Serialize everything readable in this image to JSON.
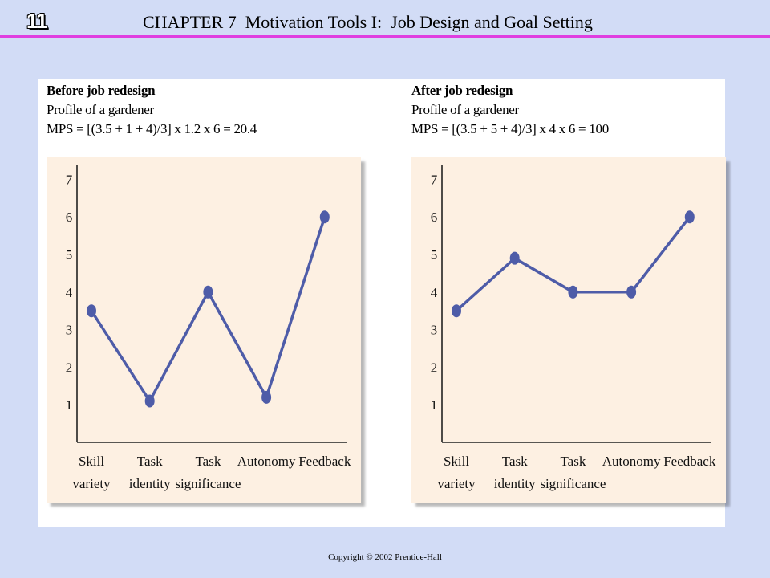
{
  "header": {
    "slide_number": "11",
    "title": "CHAPTER 7  Motivation Tools I:  Job Design and Goal Setting"
  },
  "footer": {
    "copyright": "Copyright © 2002 Prentice-Hall"
  },
  "colors": {
    "background": "#d2dcf6",
    "header_rule": "#e03fe0",
    "plot_background": "#fdf0e2",
    "series_line": "#4e5ca8"
  },
  "chart_data": [
    {
      "type": "line",
      "title": "Before job redesign",
      "subtitle": "Profile of a gardener",
      "formula": "MPS = [(3.5 + 1 + 4)/3] x 1.2 x 6 = 20.4",
      "categories": [
        [
          "Skill",
          "variety"
        ],
        [
          "Task",
          "identity"
        ],
        [
          "Task",
          "significance"
        ],
        [
          "Autonomy"
        ],
        [
          "Feedback"
        ]
      ],
      "values": [
        3.5,
        1.1,
        4,
        1.2,
        6
      ],
      "yticks": [
        "1",
        "2",
        "3",
        "4",
        "5",
        "6",
        "7"
      ],
      "ylim": [
        0,
        7
      ],
      "grid": false,
      "legend": "none"
    },
    {
      "type": "line",
      "title": "After job redesign",
      "subtitle": "Profile of a gardener",
      "formula": "MPS = [(3.5 + 5 + 4)/3] x 4 x 6 = 100",
      "categories": [
        [
          "Skill",
          "variety"
        ],
        [
          "Task",
          "identity"
        ],
        [
          "Task",
          "significance"
        ],
        [
          "Autonomy"
        ],
        [
          "Feedback"
        ]
      ],
      "values": [
        3.5,
        4.9,
        4,
        4,
        6
      ],
      "yticks": [
        "1",
        "2",
        "3",
        "4",
        "5",
        "6",
        "7"
      ],
      "ylim": [
        0,
        7
      ],
      "grid": false,
      "legend": "none"
    }
  ]
}
